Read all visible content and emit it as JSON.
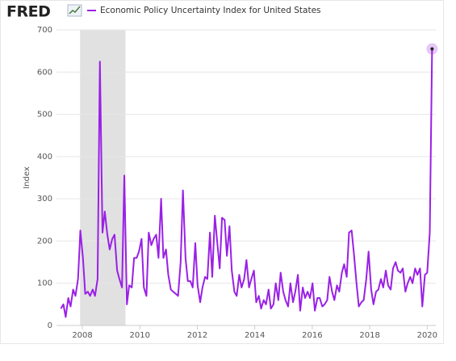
{
  "header": {
    "logo": "FRED"
  },
  "chart_data": {
    "type": "line",
    "y_label": "Index",
    "x": [
      2007.25,
      2007.34,
      2007.42,
      2007.51,
      2007.59,
      2007.68,
      2007.76,
      2007.85,
      2007.93,
      2008.02,
      2008.1,
      2008.19,
      2008.27,
      2008.36,
      2008.44,
      2008.53,
      2008.61,
      2008.7,
      2008.78,
      2008.87,
      2008.95,
      2009.04,
      2009.12,
      2009.21,
      2009.29,
      2009.38,
      2009.46,
      2009.55,
      2009.63,
      2009.72,
      2009.8,
      2009.89,
      2009.97,
      2010.06,
      2010.14,
      2010.23,
      2010.31,
      2010.4,
      2010.48,
      2010.57,
      2010.65,
      2010.74,
      2010.82,
      2010.91,
      2010.99,
      2011.08,
      2011.16,
      2011.25,
      2011.33,
      2011.42,
      2011.5,
      2011.59,
      2011.67,
      2011.76,
      2011.84,
      2011.93,
      2012.01,
      2012.1,
      2012.18,
      2012.27,
      2012.35,
      2012.44,
      2012.52,
      2012.61,
      2012.69,
      2012.78,
      2012.86,
      2012.95,
      2013.03,
      2013.12,
      2013.2,
      2013.29,
      2013.37,
      2013.46,
      2013.54,
      2013.63,
      2013.71,
      2013.8,
      2013.88,
      2013.97,
      2014.05,
      2014.14,
      2014.22,
      2014.31,
      2014.39,
      2014.48,
      2014.56,
      2014.65,
      2014.73,
      2014.82,
      2014.9,
      2014.99,
      2015.07,
      2015.16,
      2015.24,
      2015.33,
      2015.41,
      2015.5,
      2015.58,
      2015.67,
      2015.75,
      2015.84,
      2015.92,
      2016.01,
      2016.09,
      2016.18,
      2016.26,
      2016.35,
      2016.43,
      2016.52,
      2016.6,
      2016.69,
      2016.77,
      2016.86,
      2016.94,
      2017.03,
      2017.11,
      2017.2,
      2017.28,
      2017.37,
      2017.45,
      2017.54,
      2017.62,
      2017.71,
      2017.79,
      2017.88,
      2017.96,
      2018.05,
      2018.13,
      2018.22,
      2018.3,
      2018.39,
      2018.47,
      2018.56,
      2018.64,
      2018.73,
      2018.81,
      2018.9,
      2018.98,
      2019.07,
      2019.15,
      2019.24,
      2019.32,
      2019.41,
      2019.49,
      2019.58,
      2019.66,
      2019.75,
      2019.83,
      2019.92,
      2020.0,
      2020.09,
      2020.17
    ],
    "series": [
      {
        "name": "Economic Policy Uncertainty Index for United States",
        "color": "#9a20e6",
        "values": [
          40,
          50,
          20,
          65,
          45,
          85,
          70,
          110,
          225,
          160,
          75,
          80,
          70,
          85,
          70,
          110,
          625,
          220,
          270,
          215,
          180,
          205,
          215,
          130,
          110,
          90,
          355,
          50,
          95,
          90,
          160,
          160,
          175,
          205,
          90,
          70,
          220,
          190,
          205,
          215,
          160,
          300,
          160,
          180,
          120,
          85,
          80,
          75,
          70,
          150,
          320,
          160,
          105,
          105,
          90,
          195,
          95,
          55,
          90,
          115,
          110,
          220,
          115,
          260,
          200,
          135,
          255,
          250,
          165,
          235,
          130,
          80,
          70,
          120,
          90,
          110,
          155,
          90,
          110,
          130,
          55,
          70,
          40,
          60,
          50,
          85,
          40,
          50,
          100,
          60,
          125,
          80,
          60,
          45,
          100,
          55,
          80,
          120,
          35,
          90,
          65,
          80,
          65,
          100,
          35,
          65,
          65,
          45,
          50,
          60,
          115,
          80,
          60,
          95,
          80,
          125,
          145,
          115,
          220,
          225,
          170,
          100,
          45,
          55,
          60,
          110,
          175,
          85,
          50,
          80,
          85,
          110,
          90,
          130,
          95,
          85,
          135,
          150,
          130,
          125,
          135,
          80,
          100,
          115,
          100,
          135,
          120,
          135,
          45,
          120,
          125,
          220,
          655
        ]
      }
    ],
    "xlim": [
      2007.1,
      2020.3
    ],
    "xticks": [
      2008,
      2010,
      2012,
      2014,
      2016,
      2018,
      2020
    ],
    "ylim": [
      0,
      700
    ],
    "yticks": [
      0,
      100,
      200,
      300,
      400,
      500,
      600,
      700
    ],
    "grid": true,
    "shading": {
      "start": 2007.92,
      "end": 2009.5,
      "color": "#e1e1e1"
    }
  }
}
